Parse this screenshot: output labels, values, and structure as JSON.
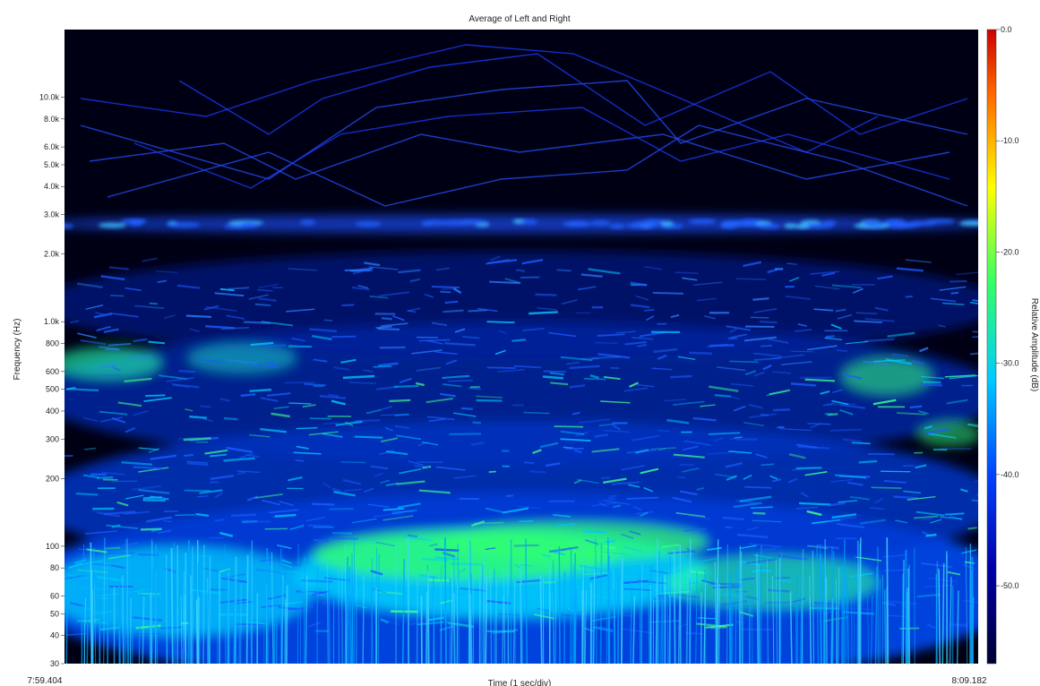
{
  "chart_data": {
    "type": "heatmap",
    "title": "Average of Left and Right",
    "xlabel": "Time (1 sec/div)",
    "ylabel": "Frequency (Hz)",
    "colorbar_label": "Relative Amplitude (dB)",
    "x_tick_labels": [
      "7:59.404",
      "8:09.182"
    ],
    "y_scale": "log",
    "y_range": [
      30,
      20000
    ],
    "y_ticks": [
      {
        "value": 30,
        "label": "30"
      },
      {
        "value": 40,
        "label": "40"
      },
      {
        "value": 50,
        "label": "50"
      },
      {
        "value": 60,
        "label": "60"
      },
      {
        "value": 80,
        "label": "80"
      },
      {
        "value": 100,
        "label": "100"
      },
      {
        "value": 200,
        "label": "200"
      },
      {
        "value": 300,
        "label": "300"
      },
      {
        "value": 400,
        "label": "400"
      },
      {
        "value": 500,
        "label": "500"
      },
      {
        "value": 600,
        "label": "600"
      },
      {
        "value": 800,
        "label": "800"
      },
      {
        "value": 1000,
        "label": "1.0k"
      },
      {
        "value": 2000,
        "label": "2.0k"
      },
      {
        "value": 3000,
        "label": "3.0k"
      },
      {
        "value": 4000,
        "label": "4.0k"
      },
      {
        "value": 5000,
        "label": "5.0k"
      },
      {
        "value": 6000,
        "label": "6.0k"
      },
      {
        "value": 8000,
        "label": "8.0k"
      },
      {
        "value": 10000,
        "label": "10.0k"
      }
    ],
    "colorbar_range": [
      -57,
      0
    ],
    "colorbar_ticks": [
      {
        "value": 0,
        "label": "0.0"
      },
      {
        "value": -10,
        "label": "-10.0"
      },
      {
        "value": -20,
        "label": "-20.0"
      },
      {
        "value": -30,
        "label": "-30.0"
      },
      {
        "value": -40,
        "label": "-40.0"
      },
      {
        "value": -50,
        "label": "-50.0"
      }
    ],
    "colormap": [
      "#000033",
      "#0000aa",
      "#0044ff",
      "#00ccff",
      "#33ff66",
      "#ffff00",
      "#ff6600",
      "#cc0000"
    ],
    "background": "#000014"
  }
}
